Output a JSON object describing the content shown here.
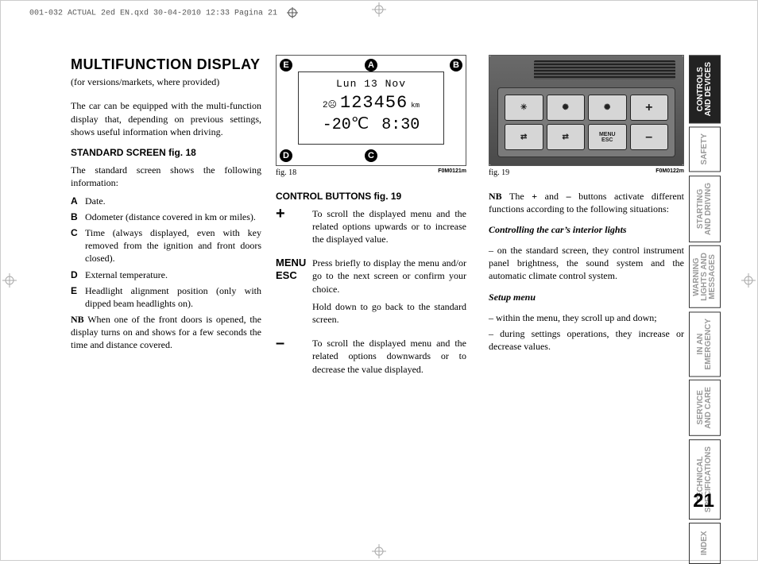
{
  "print_header": "001-032 ACTUAL 2ed EN.qxd  30-04-2010  12:33  Pagina 21",
  "tabs": [
    {
      "label": "CONTROLS\nAND DEVICES",
      "active": true
    },
    {
      "label": "SAFETY",
      "active": false
    },
    {
      "label": "STARTING\nAND DRIVING",
      "active": false
    },
    {
      "label": "WARNING\nLIGHTS AND\nMESSAGES",
      "active": false
    },
    {
      "label": "IN AN\nEMERGENCY",
      "active": false
    },
    {
      "label": "SERVICE\nAND CARE",
      "active": false
    },
    {
      "label": "TECHNICAL\nSPECIFICATIONS",
      "active": false
    },
    {
      "label": "INDEX",
      "active": false
    }
  ],
  "title": "MULTIFUNCTION DISPLAY",
  "subtitle": "(for versions/markets, where provided)",
  "intro": "The car can be equipped with the multi-function display that, depending on previous settings, shows useful information when driving.",
  "std_heading": "STANDARD SCREEN fig. 18",
  "std_lead": "The standard screen shows the following information:",
  "std_items": [
    {
      "k": "A",
      "v": "Date."
    },
    {
      "k": "B",
      "v": "Odometer (distance covered in km or miles)."
    },
    {
      "k": "C",
      "v": "Time (always displayed, even with key removed from the ignition and front doors closed)."
    },
    {
      "k": "D",
      "v": "External temperature."
    },
    {
      "k": "E",
      "v": "Headlight alignment position (only with dipped beam headlights on)."
    }
  ],
  "std_nb": "NB When one of the front doors is opened, the display turns on and shows for a few seconds the time and distance covered.",
  "fig18": {
    "label": "fig. 18",
    "code": "F0M0121m",
    "marks": [
      "E",
      "A",
      "B",
      "D",
      "C"
    ],
    "r1": "Lun 13 Nov",
    "r2_left": "2☹",
    "r2_center": "123456",
    "r2_unit": "km",
    "r3_left": "-20℃",
    "r3_right": "8:30"
  },
  "ctrl_heading": "CONTROL BUTTONS fig. 19",
  "ctrl_items": [
    {
      "k": "+",
      "big": true,
      "v": "To scroll the displayed menu and the related options upwards or to increase the displayed value."
    },
    {
      "k": "MENU\nESC",
      "big": false,
      "v": "Press briefly to display the menu and/or go to the next screen or confirm your choice.\nHold down to go back to the standard screen."
    },
    {
      "k": "–",
      "big": true,
      "v": "To scroll the displayed menu and the related options downwards or to decrease the value displayed."
    }
  ],
  "fig19": {
    "label": "fig. 19",
    "code": "F0M0122m",
    "buttons": [
      "☀",
      "☼",
      "+",
      "↔",
      "↔",
      "MENU\nESC",
      "–"
    ]
  },
  "right_nb": "NB The + and – buttons activate different functions according to the following situations:",
  "sec1_h": "Controlling the car’s interior lights",
  "sec1_p": "– on the standard screen, they control instrument panel brightness, the sound system and the automatic climate control system.",
  "sec2_h": "Setup menu",
  "sec2_p1": "– within the menu, they scroll up and down;",
  "sec2_p2": "– during settings operations, they increase or decrease values.",
  "page_number": "21"
}
